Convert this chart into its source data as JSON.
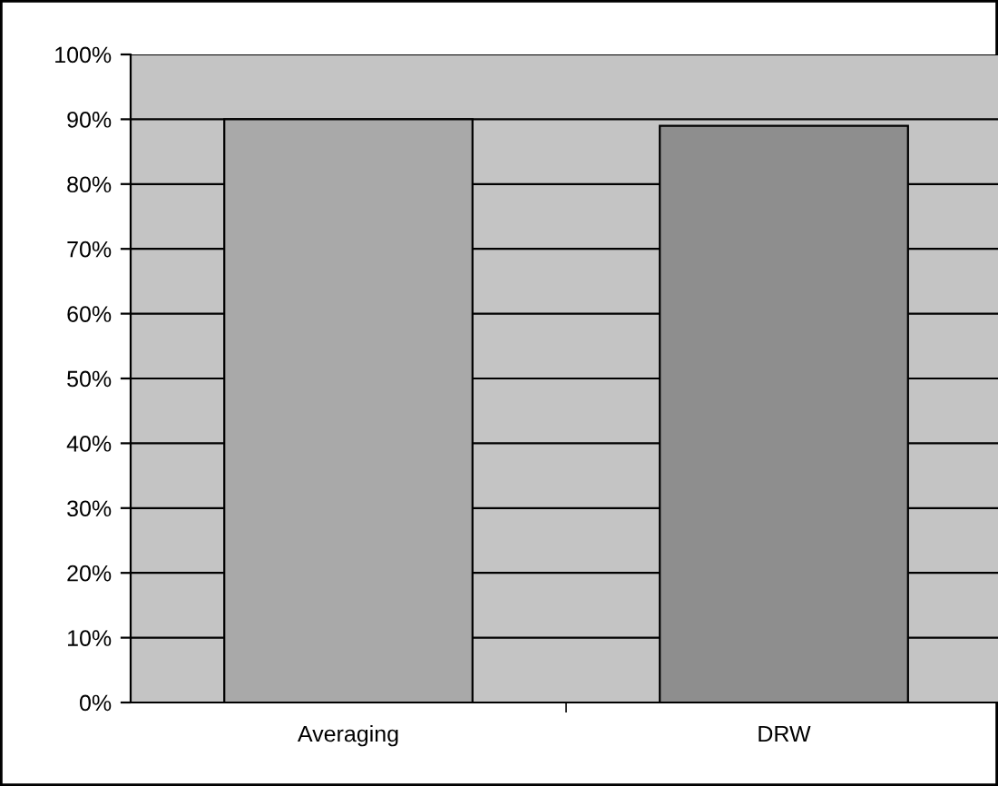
{
  "chart_data": {
    "type": "bar",
    "categories": [
      "Averaging",
      "DRW"
    ],
    "values": [
      90,
      89
    ],
    "colors": [
      "#a9a9a9",
      "#8e8e8e"
    ],
    "ylim": [
      0,
      100
    ],
    "yticks": [
      {
        "value": 0,
        "label": "0%"
      },
      {
        "value": 10,
        "label": "10%"
      },
      {
        "value": 20,
        "label": "20%"
      },
      {
        "value": 30,
        "label": "30%"
      },
      {
        "value": 40,
        "label": "40%"
      },
      {
        "value": 50,
        "label": "50%"
      },
      {
        "value": 60,
        "label": "60%"
      },
      {
        "value": 70,
        "label": "70%"
      },
      {
        "value": 80,
        "label": "80%"
      },
      {
        "value": 90,
        "label": "90%"
      },
      {
        "value": 100,
        "label": "100%"
      }
    ],
    "grid": "y"
  }
}
